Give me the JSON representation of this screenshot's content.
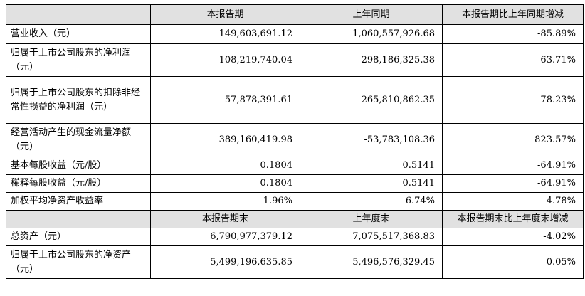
{
  "header1": {
    "c1": "",
    "c2": "本报告期",
    "c3": "上年同期",
    "c4": "本报告期比上年同期增减"
  },
  "rows1": [
    {
      "label": "营业收入（元）",
      "current": "149,603,691.12",
      "prior": "1,060,557,926.68",
      "change": "-85.89%"
    },
    {
      "label": "归属于上市公司股东的净利润（元）",
      "current": "108,219,740.04",
      "prior": "298,186,325.38",
      "change": "-63.71%"
    },
    {
      "label": "归属于上市公司股东的扣除非经常性损益的净利润（元）",
      "current": "57,878,391.61",
      "prior": "265,810,862.35",
      "change": "-78.23%"
    },
    {
      "label": "经营活动产生的现金流量净额（元）",
      "current": "389,160,419.98",
      "prior": "-53,783,108.36",
      "change": "823.57%"
    },
    {
      "label": "基本每股收益（元/股）",
      "current": "0.1804",
      "prior": "0.5141",
      "change": "-64.91%"
    },
    {
      "label": "稀释每股收益（元/股）",
      "current": "0.1804",
      "prior": "0.5141",
      "change": "-64.91%"
    },
    {
      "label": "加权平均净资产收益率",
      "current": "1.96%",
      "prior": "6.74%",
      "change": "-4.78%"
    }
  ],
  "header2": {
    "c1": "",
    "c2": "本报告期末",
    "c3": "上年度末",
    "c4": "本报告期末比上年度末增减"
  },
  "rows2": [
    {
      "label": "总资产（元）",
      "current": "6,790,977,379.12",
      "prior": "7,075,517,368.83",
      "change": "-4.02%"
    },
    {
      "label": "归属于上市公司股东的净资产（元）",
      "current": "5,499,196,635.85",
      "prior": "5,496,576,329.45",
      "change": "0.05%"
    }
  ]
}
